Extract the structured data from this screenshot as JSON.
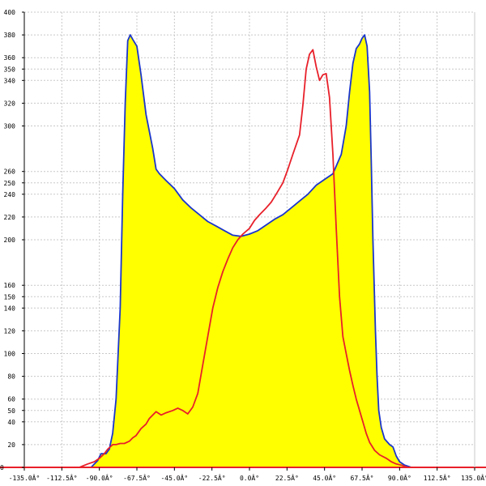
{
  "chart_data": {
    "type": "area",
    "title": "",
    "xlabel": "",
    "ylabel": "",
    "xlim": [
      -135,
      135
    ],
    "ylim": [
      0,
      400
    ],
    "grid": true,
    "x_ticks": [
      -135,
      -112.5,
      -90,
      -67.5,
      -45,
      -22.5,
      0,
      22.5,
      45,
      67.5,
      90,
      112.5,
      135
    ],
    "x_tick_labels": [
      "-135.0Â°",
      "-112.5Â°",
      "-90.0Â°",
      "-67.5Â°",
      "-45.0Â°",
      "-22.5Â°",
      "0.0Â°",
      "22.5Â°",
      "45.0Â°",
      "67.5Â°",
      "90.0Â°",
      "112.5Â°",
      "135.0Â°"
    ],
    "y_ticks": [
      0,
      20,
      40,
      50,
      60,
      80,
      100,
      120,
      140,
      150,
      160,
      200,
      220,
      240,
      250,
      260,
      300,
      320,
      340,
      350,
      360,
      380,
      400
    ],
    "y_tick_labels": [
      "0",
      "20",
      "40",
      "50",
      "60",
      "80",
      "100",
      "120",
      "140",
      "150",
      "160",
      "200",
      "220",
      "240",
      "250",
      "260",
      "300",
      "320",
      "340",
      "350",
      "360",
      "380",
      "400"
    ],
    "colors": {
      "fill": "#ffff00",
      "series_1": "#1a35cc",
      "series_2": "#e8202a",
      "grid": "#c8c8c8",
      "axis": "#000000"
    },
    "series": [
      {
        "color": "#1a35cc",
        "filled": true,
        "x": [
          -135,
          -95,
          -91,
          -89,
          -86,
          -84,
          -82,
          -80,
          -77.5,
          -76,
          -74.5,
          -73,
          -71.5,
          -70,
          -67.5,
          -65,
          -62,
          -58,
          -56,
          -54,
          -50,
          -45,
          -40,
          -35,
          -30,
          -25,
          -20,
          -15,
          -10,
          -5,
          0,
          5,
          10,
          15,
          20,
          25,
          30,
          35,
          40,
          45,
          50,
          55,
          58,
          60,
          62,
          64,
          66,
          67.5,
          69,
          70.5,
          72,
          73,
          74,
          75.5,
          76.5,
          77.5,
          79,
          81,
          84,
          86,
          88,
          90,
          93,
          97,
          135
        ],
        "y": [
          0,
          0,
          6,
          12,
          12,
          16,
          30,
          60,
          140,
          240,
          320,
          375,
          380,
          376,
          370,
          345,
          310,
          280,
          262,
          258,
          252,
          245,
          235,
          228,
          222,
          216,
          212,
          208,
          204,
          203,
          205,
          208,
          213,
          218,
          222,
          228,
          234,
          240,
          248,
          253,
          258,
          275,
          300,
          330,
          355,
          368,
          372,
          377,
          380,
          370,
          330,
          270,
          200,
          120,
          80,
          50,
          35,
          25,
          20,
          18,
          10,
          5,
          2,
          0,
          0
        ]
      },
      {
        "color": "#e8202a",
        "filled": false,
        "x": [
          -135,
          -102,
          -97,
          -93,
          -90,
          -87,
          -85,
          -82,
          -80,
          -77.5,
          -75,
          -72,
          -70,
          -68,
          -65,
          -62,
          -60,
          -56,
          -53,
          -50,
          -46,
          -43,
          -40,
          -37,
          -34,
          -31,
          -28,
          -25,
          -22,
          -19,
          -16,
          -13,
          -10,
          -7,
          -4,
          0,
          3,
          6,
          10,
          13,
          16,
          20,
          23,
          26,
          30,
          32,
          34,
          36,
          38,
          40,
          42,
          44,
          46,
          48,
          50,
          52,
          54,
          56,
          58,
          60,
          62,
          64,
          66,
          68,
          70,
          72,
          75,
          78,
          82,
          85,
          88,
          91,
          93,
          95,
          98,
          100,
          135
        ],
        "y": [
          0,
          0,
          3,
          5,
          8,
          12,
          16,
          20,
          20,
          21,
          21,
          23,
          26,
          28,
          34,
          38,
          43,
          49,
          46,
          48,
          50,
          52,
          50,
          47,
          53,
          65,
          90,
          115,
          140,
          158,
          172,
          183,
          193,
          200,
          205,
          210,
          217,
          222,
          228,
          233,
          240,
          250,
          262,
          275,
          292,
          318,
          350,
          363,
          367,
          352,
          340,
          345,
          346,
          325,
          275,
          210,
          150,
          115,
          100,
          85,
          72,
          60,
          50,
          40,
          30,
          22,
          15,
          11,
          8,
          5,
          3,
          2,
          1,
          0,
          0,
          0,
          0
        ]
      }
    ]
  }
}
